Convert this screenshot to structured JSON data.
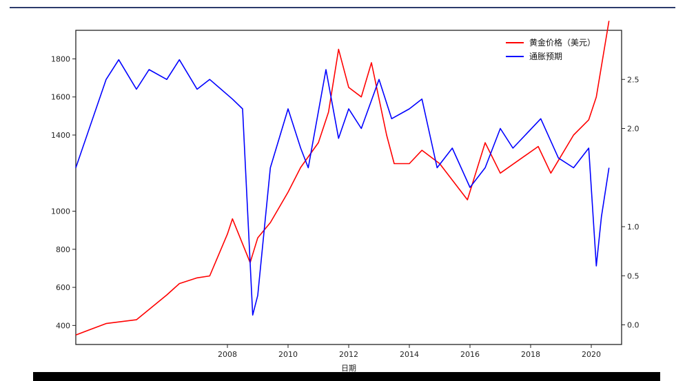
{
  "chart_data": {
    "type": "line",
    "title": "",
    "xlabel": "日期",
    "left_ylabel": "",
    "right_ylabel": "",
    "x_ticks": [
      "2008",
      "2010",
      "2012",
      "2014",
      "2016",
      "2018",
      "2020"
    ],
    "left_ticks": [
      "1800",
      "1600",
      "1400",
      "1000",
      "800",
      "600",
      "400"
    ],
    "right_ticks": [
      "2.5",
      "2.0",
      "1.0",
      "0.5",
      "0.0"
    ],
    "left_ylim": [
      300,
      1950
    ],
    "right_ylim": [
      -0.2,
      3.0
    ],
    "legend_position": "top-right",
    "series": [
      {
        "name": "黄金价格（美元）",
        "color": "#ff0000",
        "axis": "left",
        "points": [
          [
            "2003-01",
            350
          ],
          [
            "2004-01",
            410
          ],
          [
            "2005-01",
            430
          ],
          [
            "2006-01",
            560
          ],
          [
            "2006-06",
            620
          ],
          [
            "2007-01",
            650
          ],
          [
            "2007-06",
            660
          ],
          [
            "2008-01",
            880
          ],
          [
            "2008-03",
            960
          ],
          [
            "2008-10",
            730
          ],
          [
            "2009-01",
            860
          ],
          [
            "2009-06",
            940
          ],
          [
            "2010-01",
            1100
          ],
          [
            "2010-06",
            1230
          ],
          [
            "2011-01",
            1360
          ],
          [
            "2011-05",
            1520
          ],
          [
            "2011-09",
            1850
          ],
          [
            "2012-01",
            1650
          ],
          [
            "2012-06",
            1600
          ],
          [
            "2012-10",
            1780
          ],
          [
            "2013-04",
            1400
          ],
          [
            "2013-07",
            1250
          ],
          [
            "2014-01",
            1250
          ],
          [
            "2014-06",
            1320
          ],
          [
            "2015-01",
            1250
          ],
          [
            "2015-12",
            1060
          ],
          [
            "2016-07",
            1360
          ],
          [
            "2017-01",
            1200
          ],
          [
            "2018-04",
            1340
          ],
          [
            "2018-09",
            1200
          ],
          [
            "2019-06",
            1400
          ],
          [
            "2019-12",
            1480
          ],
          [
            "2020-03",
            1600
          ],
          [
            "2020-08",
            2000
          ]
        ]
      },
      {
        "name": "通胀预期",
        "color": "#0000ff",
        "axis": "right",
        "points": [
          [
            "2003-01",
            1.6
          ],
          [
            "2004-01",
            2.5
          ],
          [
            "2004-06",
            2.7
          ],
          [
            "2005-01",
            2.4
          ],
          [
            "2005-06",
            2.6
          ],
          [
            "2006-01",
            2.5
          ],
          [
            "2006-06",
            2.7
          ],
          [
            "2007-01",
            2.4
          ],
          [
            "2007-06",
            2.5
          ],
          [
            "2008-03",
            2.3
          ],
          [
            "2008-07",
            2.2
          ],
          [
            "2008-11",
            0.1
          ],
          [
            "2009-01",
            0.3
          ],
          [
            "2009-06",
            1.6
          ],
          [
            "2010-01",
            2.2
          ],
          [
            "2010-06",
            1.8
          ],
          [
            "2010-09",
            1.6
          ],
          [
            "2011-04",
            2.6
          ],
          [
            "2011-09",
            1.9
          ],
          [
            "2012-01",
            2.2
          ],
          [
            "2012-06",
            2.0
          ],
          [
            "2013-01",
            2.5
          ],
          [
            "2013-06",
            2.1
          ],
          [
            "2014-01",
            2.2
          ],
          [
            "2014-06",
            2.3
          ],
          [
            "2014-12",
            1.6
          ],
          [
            "2015-06",
            1.8
          ],
          [
            "2016-01",
            1.4
          ],
          [
            "2016-07",
            1.6
          ],
          [
            "2017-01",
            2.0
          ],
          [
            "2017-06",
            1.8
          ],
          [
            "2018-05",
            2.1
          ],
          [
            "2018-12",
            1.7
          ],
          [
            "2019-06",
            1.6
          ],
          [
            "2019-12",
            1.8
          ],
          [
            "2020-03",
            0.6
          ],
          [
            "2020-05",
            1.1
          ],
          [
            "2020-08",
            1.6
          ]
        ]
      }
    ]
  }
}
